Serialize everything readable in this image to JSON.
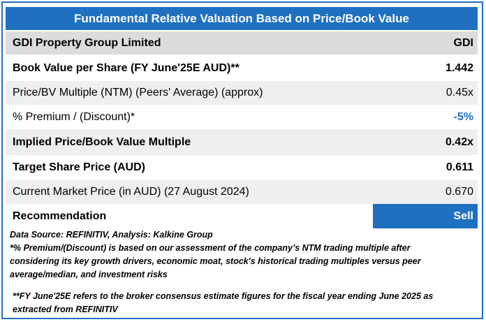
{
  "title": "Fundamental Relative Valuation Based on Price/Book Value",
  "header": {
    "company": "GDI Property Group Limited",
    "ticker": "GDI"
  },
  "rows": [
    {
      "label": "Book Value per Share (FY June'25E AUD)**",
      "value": "1.442"
    },
    {
      "label": "Price/BV Multiple (NTM)  (Peers' Average) (approx)",
      "value": "0.45x"
    },
    {
      "label": "% Premium / (Discount)*",
      "value": "-5%"
    },
    {
      "label": "Implied Price/Book Value Multiple",
      "value": "0.42x"
    },
    {
      "label": "Target Share Price (AUD)",
      "value": "0.611"
    },
    {
      "label": "Current Market Price (in AUD) (27 August 2024)",
      "value": "0.670"
    }
  ],
  "recommendation": {
    "label": "Recommendation",
    "value": "Sell"
  },
  "notes": {
    "source": "Data Source: REFINITIV, Analysis: Kalkine Group",
    "premium_line1": "*% Premium/(Discount) is based on our assessment of the company’s NTM trading multiple after",
    "premium_line2": "considering its key growth drivers, economic moat, stock's historical trading multiples versus peer",
    "premium_line3": "average/median, and investment risks",
    "fy_line1": "**FY June'25E refers to the broker consensus estimate figures for the fiscal year ending June 2025  as",
    "fy_line2": "extracted from REFINITIV"
  },
  "colors": {
    "accent": "#1f70c1",
    "shade": "#efefef",
    "header": "#dcdcdc"
  }
}
